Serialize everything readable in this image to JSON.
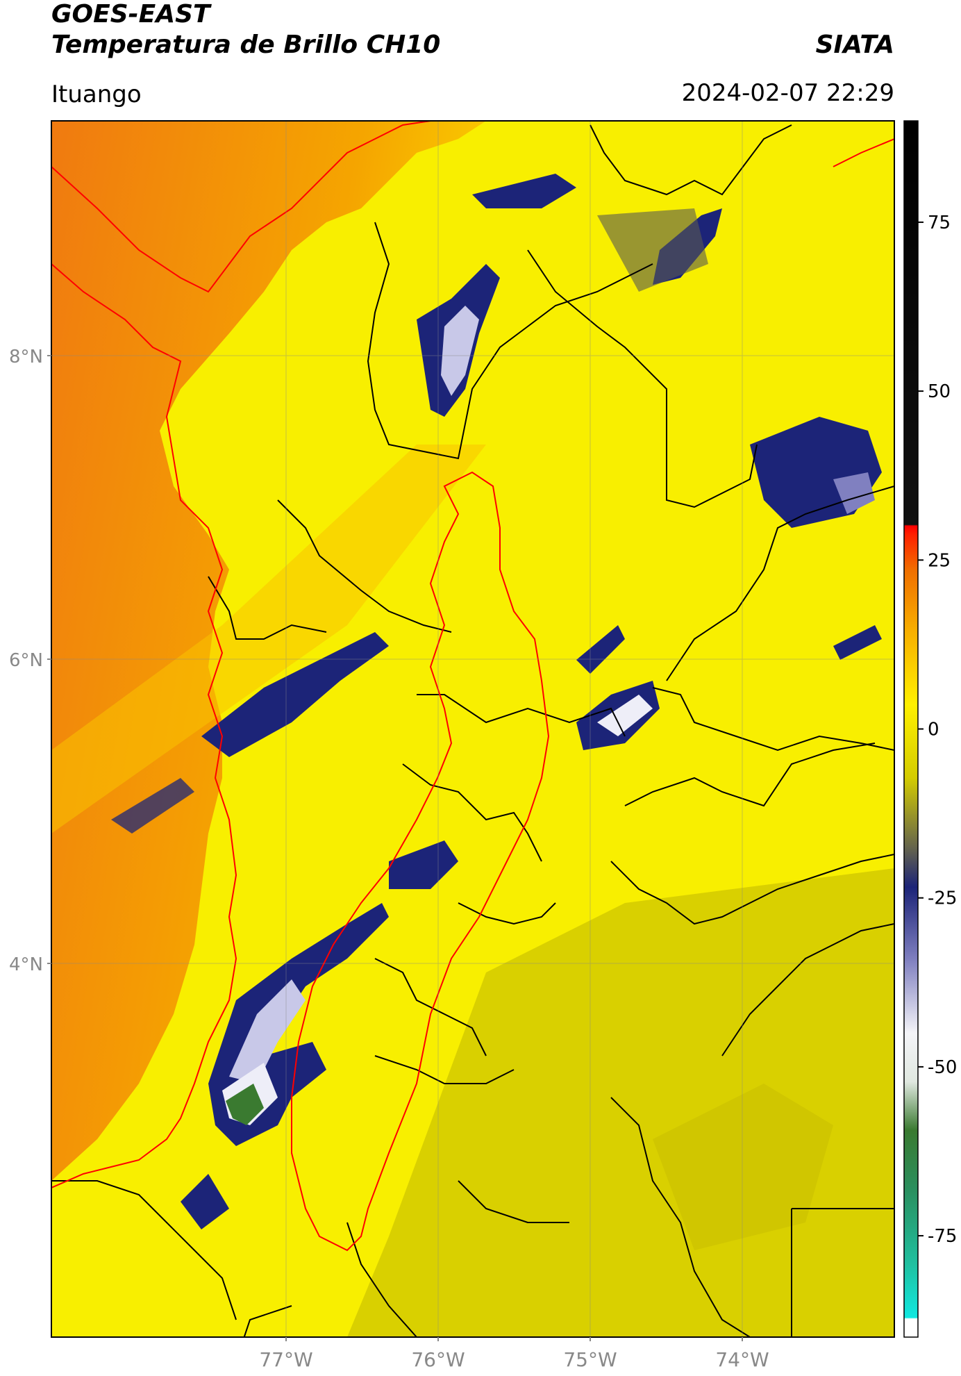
{
  "header": {
    "satellite": "GOES-EAST",
    "product": "Temperatura de Brillo CH10",
    "organization": "SIATA",
    "location": "Ituango",
    "datetime": "2024-02-07 22:29"
  },
  "map": {
    "lat_ticks": [
      {
        "value": 8,
        "label": "8°N"
      },
      {
        "value": 6,
        "label": "6°N"
      },
      {
        "value": 4,
        "label": "4°N"
      }
    ],
    "lon_ticks": [
      {
        "value": -77,
        "label": "77°W"
      },
      {
        "value": -76,
        "label": "76°W"
      },
      {
        "value": -75,
        "label": "75°W"
      },
      {
        "value": -74,
        "label": "74°W"
      }
    ],
    "extent": {
      "lon_min": -78.55,
      "lon_max": -73.0,
      "lat_min": 2.0,
      "lat_max": 9.55
    },
    "colors": {
      "background_warm": "#f49a10",
      "land_warm": "#f8ef00",
      "cool": "#d9d000",
      "cold_cloud": "#1c2478",
      "very_cold": "#e8e8f4",
      "coldest": "#3a7a30",
      "political_border": "#ff0000",
      "admin_border": "#000000"
    }
  },
  "colorbar": {
    "labels": [
      "75",
      "50",
      "25",
      "0",
      "-25",
      "-50",
      "-75"
    ],
    "values": [
      75,
      50,
      25,
      0,
      -25,
      -50,
      -75
    ],
    "range": [
      -90,
      90
    ]
  }
}
